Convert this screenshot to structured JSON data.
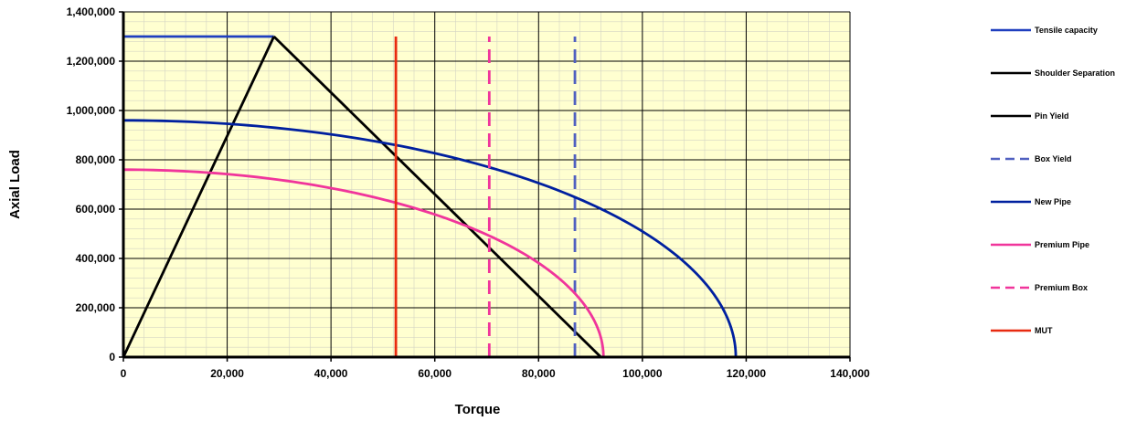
{
  "chart_data": {
    "type": "line",
    "title": "",
    "xlabel": "Torque",
    "ylabel": "Axial Load",
    "xlim": [
      0,
      140000
    ],
    "ylim": [
      0,
      1400000
    ],
    "x_ticks": [
      "0",
      "20,000",
      "40,000",
      "60,000",
      "80,000",
      "100,000",
      "120,000",
      "140,000"
    ],
    "y_ticks": [
      "0",
      "200,000",
      "400,000",
      "600,000",
      "800,000",
      "1,000,000",
      "1,200,000",
      "1,400,000"
    ],
    "grid": true,
    "plot_background": "#ffffd0",
    "legend_position": "right",
    "series": [
      {
        "name": "Tensile capacity",
        "color": "#1f3fbf",
        "dash": "solid",
        "kind": "line",
        "x": [
          0,
          29000
        ],
        "y": [
          1300000,
          1300000
        ]
      },
      {
        "name": "Shoulder Separation",
        "color": "#000000",
        "dash": "solid",
        "kind": "line",
        "x": [
          0,
          29000
        ],
        "y": [
          0,
          1300000
        ]
      },
      {
        "name": "Pin Yield",
        "color": "#000000",
        "dash": "solid",
        "kind": "line",
        "x": [
          29000,
          92000
        ],
        "y": [
          1300000,
          0
        ]
      },
      {
        "name": "Box Yield",
        "color": "#5060c0",
        "dash": "dashed",
        "kind": "line",
        "x": [
          87000,
          87000
        ],
        "y": [
          0,
          1300000
        ]
      },
      {
        "name": "New Pipe",
        "color": "#00209f",
        "dash": "solid",
        "kind": "ellipse",
        "x_max": 118000,
        "y_max": 960000
      },
      {
        "name": "Premium Pipe",
        "color": "#f0359b",
        "dash": "solid",
        "kind": "ellipse",
        "x_max": 92500,
        "y_max": 760000
      },
      {
        "name": "Premium Box",
        "color": "#f0359b",
        "dash": "dashed",
        "kind": "line",
        "x": [
          70500,
          70500
        ],
        "y": [
          0,
          1300000
        ]
      },
      {
        "name": "MUT",
        "color": "#e82a10",
        "dash": "solid",
        "kind": "line",
        "x": [
          52500,
          52500
        ],
        "y": [
          0,
          1300000
        ]
      }
    ],
    "extra_lines": [
      {
        "color": "#f0359b",
        "dash": "solid",
        "x": [
          0,
          0
        ],
        "y": [
          0,
          1300000
        ]
      }
    ]
  }
}
